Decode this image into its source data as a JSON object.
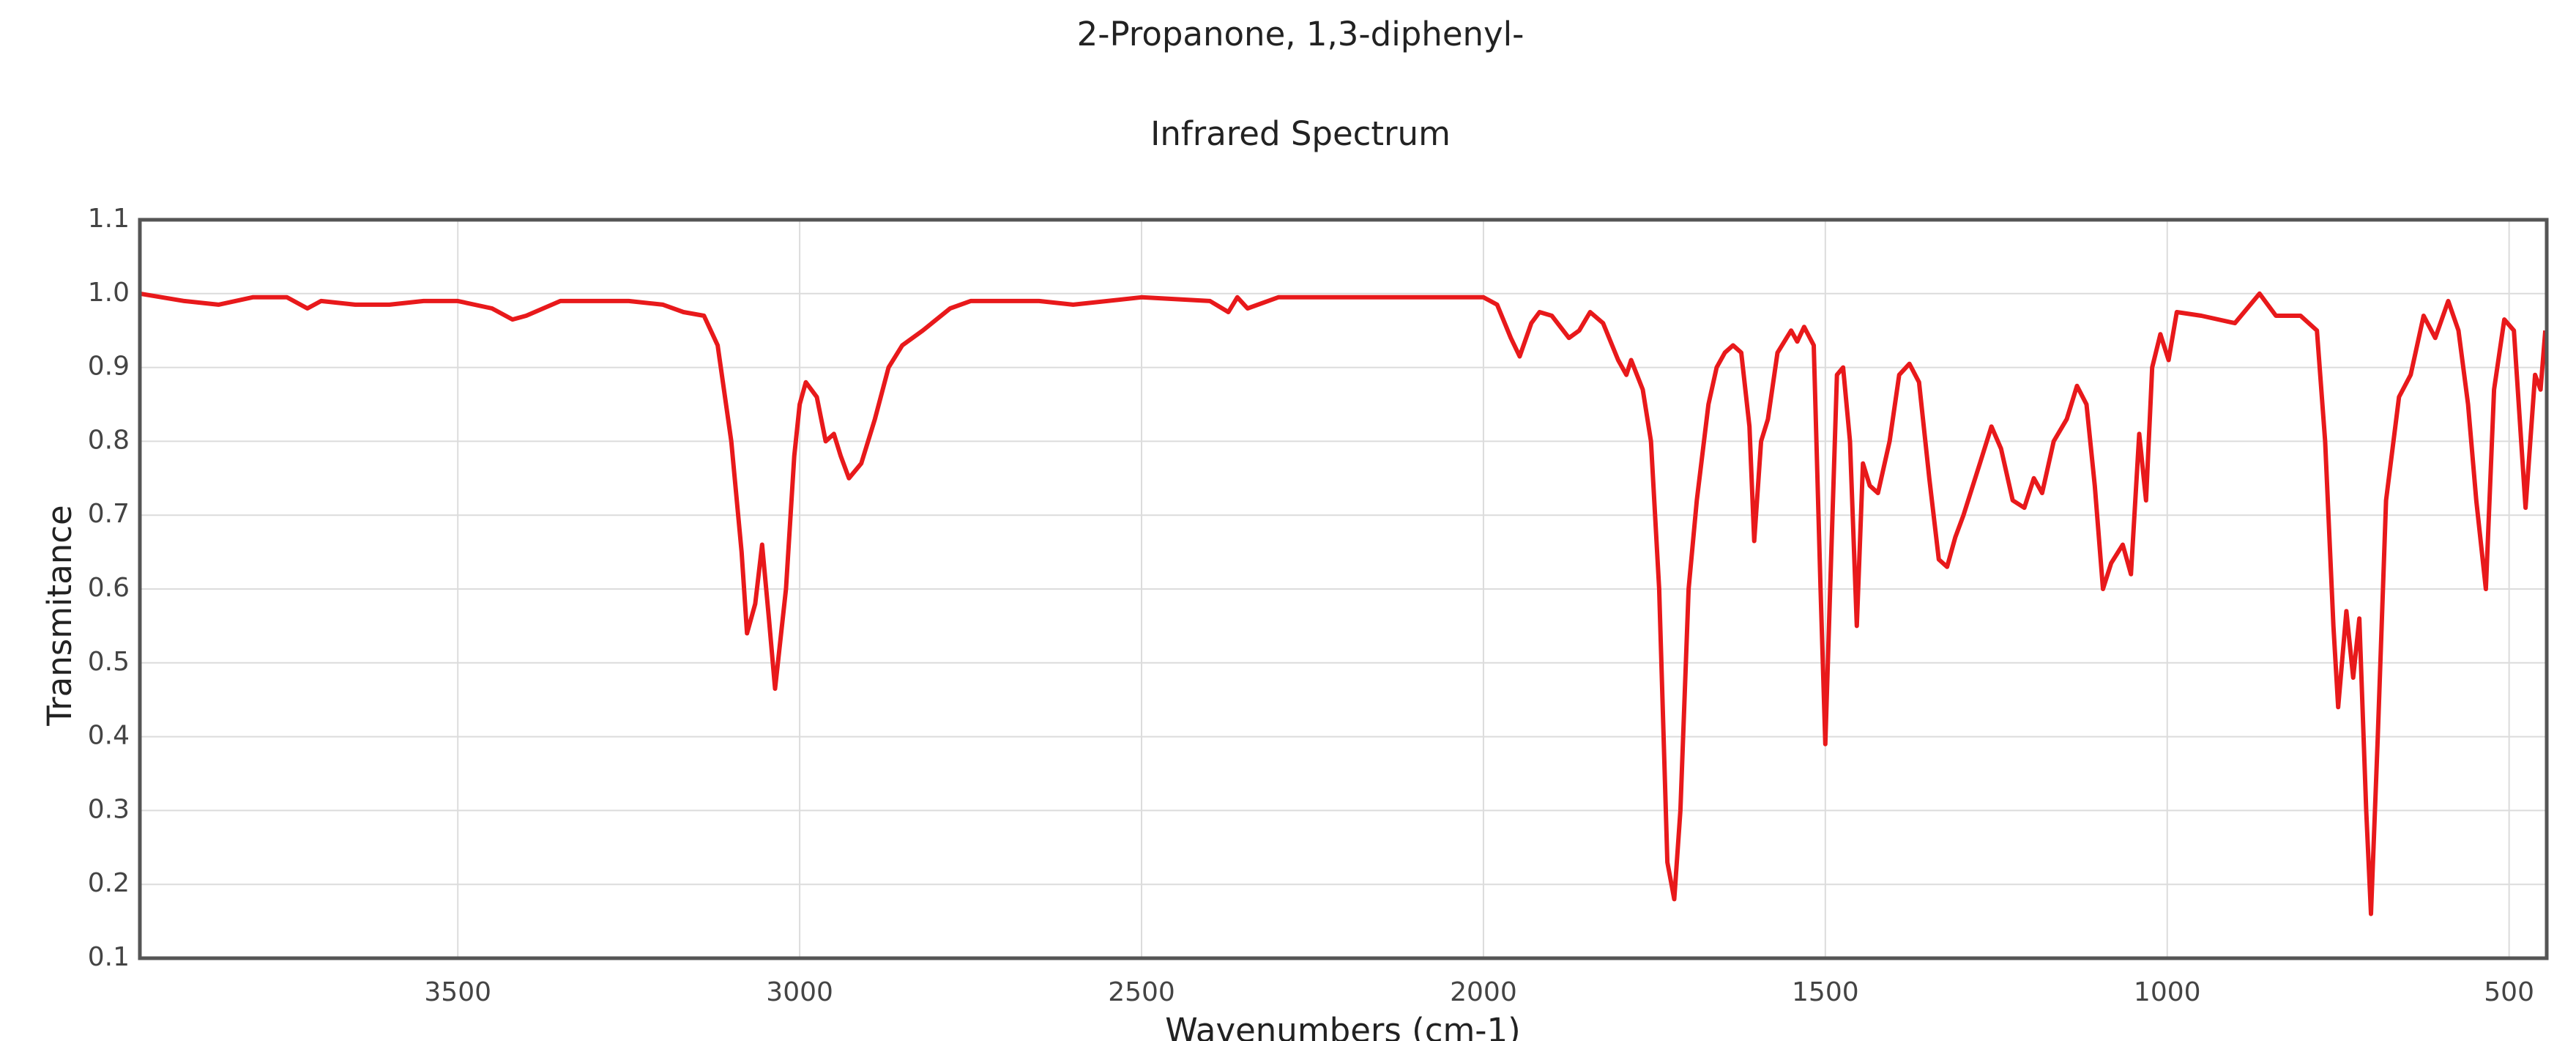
{
  "chart_data": {
    "type": "line",
    "title": "2-Propanone, 1,3-diphenyl-",
    "subtitle": "Infrared Spectrum",
    "x_label": "Wavenumbers (cm-1)",
    "y_label": "Transmitance",
    "xlim": [
      3965,
      445
    ],
    "ylim": [
      0.1,
      1.1
    ],
    "xticks": [
      3500,
      3000,
      2500,
      2000,
      1500,
      1000,
      500
    ],
    "yticks": [
      0.1,
      0.2,
      0.3,
      0.4,
      0.5,
      0.6,
      0.7,
      0.8,
      0.9,
      {
        "value": 1,
        "label": "1.0"
      },
      1.1
    ],
    "grid": true,
    "color": "#e8191b",
    "x": [
      3965,
      3900,
      3850,
      3800,
      3750,
      3720,
      3700,
      3650,
      3600,
      3550,
      3500,
      3450,
      3420,
      3400,
      3350,
      3250,
      3200,
      3170,
      3140,
      3120,
      3100,
      3085,
      3077,
      3065,
      3055,
      3045,
      3036,
      3020,
      3008,
      3000,
      2991,
      2975,
      2962,
      2950,
      2940,
      2928,
      2910,
      2890,
      2870,
      2850,
      2820,
      2780,
      2750,
      2650,
      2600,
      2500,
      2400,
      2373,
      2360,
      2345,
      2300,
      2200,
      2050,
      2000,
      1980,
      1960,
      1947,
      1930,
      1918,
      1900,
      1875,
      1860,
      1844,
      1825,
      1803,
      1791,
      1784,
      1767,
      1755,
      1743,
      1731,
      1721,
      1712,
      1700,
      1688,
      1671,
      1659,
      1647,
      1635,
      1623,
      1611,
      1604,
      1594,
      1584,
      1570,
      1550,
      1541,
      1531,
      1517,
      1507,
      1500,
      1493,
      1483,
      1474,
      1464,
      1454,
      1445,
      1435,
      1423,
      1406,
      1392,
      1377,
      1363,
      1348,
      1334,
      1322,
      1310,
      1298,
      1274,
      1257,
      1243,
      1226,
      1209,
      1195,
      1183,
      1166,
      1147,
      1132,
      1118,
      1106,
      1094,
      1082,
      1065,
      1053,
      1041,
      1031,
      1022,
      1010,
      998,
      986,
      950,
      901,
      865,
      841,
      805,
      781,
      769,
      757,
      750,
      738,
      728,
      719,
      709,
      702,
      692,
      680,
      661,
      644,
      625,
      608,
      589,
      574,
      560,
      548,
      534,
      522,
      507,
      493,
      476,
      462,
      454,
      447
    ],
    "values": [
      1.0,
      0.99,
      0.985,
      0.995,
      0.995,
      0.98,
      0.99,
      0.985,
      0.985,
      0.99,
      0.99,
      0.98,
      0.965,
      0.97,
      0.99,
      0.99,
      0.985,
      0.975,
      0.97,
      0.93,
      0.8,
      0.65,
      0.54,
      0.58,
      0.66,
      0.56,
      0.465,
      0.6,
      0.78,
      0.85,
      0.88,
      0.86,
      0.8,
      0.81,
      0.78,
      0.75,
      0.77,
      0.83,
      0.9,
      0.93,
      0.95,
      0.98,
      0.99,
      0.99,
      0.985,
      0.995,
      0.99,
      0.975,
      0.995,
      0.98,
      0.995,
      0.995,
      0.995,
      0.995,
      0.985,
      0.94,
      0.915,
      0.96,
      0.975,
      0.97,
      0.94,
      0.95,
      0.975,
      0.96,
      0.91,
      0.89,
      0.91,
      0.87,
      0.8,
      0.6,
      0.23,
      0.18,
      0.3,
      0.6,
      0.72,
      0.85,
      0.9,
      0.92,
      0.93,
      0.92,
      0.82,
      0.665,
      0.8,
      0.83,
      0.92,
      0.95,
      0.935,
      0.955,
      0.93,
      0.6,
      0.39,
      0.6,
      0.89,
      0.9,
      0.8,
      0.55,
      0.77,
      0.74,
      0.73,
      0.8,
      0.89,
      0.905,
      0.88,
      0.75,
      0.64,
      0.63,
      0.67,
      0.7,
      0.77,
      0.82,
      0.79,
      0.72,
      0.71,
      0.75,
      0.73,
      0.8,
      0.83,
      0.875,
      0.85,
      0.74,
      0.6,
      0.635,
      0.66,
      0.62,
      0.81,
      0.72,
      0.9,
      0.945,
      0.91,
      0.975,
      0.97,
      0.96,
      1.0,
      0.97,
      0.97,
      0.95,
      0.8,
      0.55,
      0.44,
      0.57,
      0.48,
      0.56,
      0.3,
      0.16,
      0.4,
      0.72,
      0.86,
      0.89,
      0.97,
      0.94,
      0.99,
      0.95,
      0.85,
      0.72,
      0.6,
      0.87,
      0.965,
      0.95,
      0.71,
      0.89,
      0.87,
      0.95
    ]
  }
}
